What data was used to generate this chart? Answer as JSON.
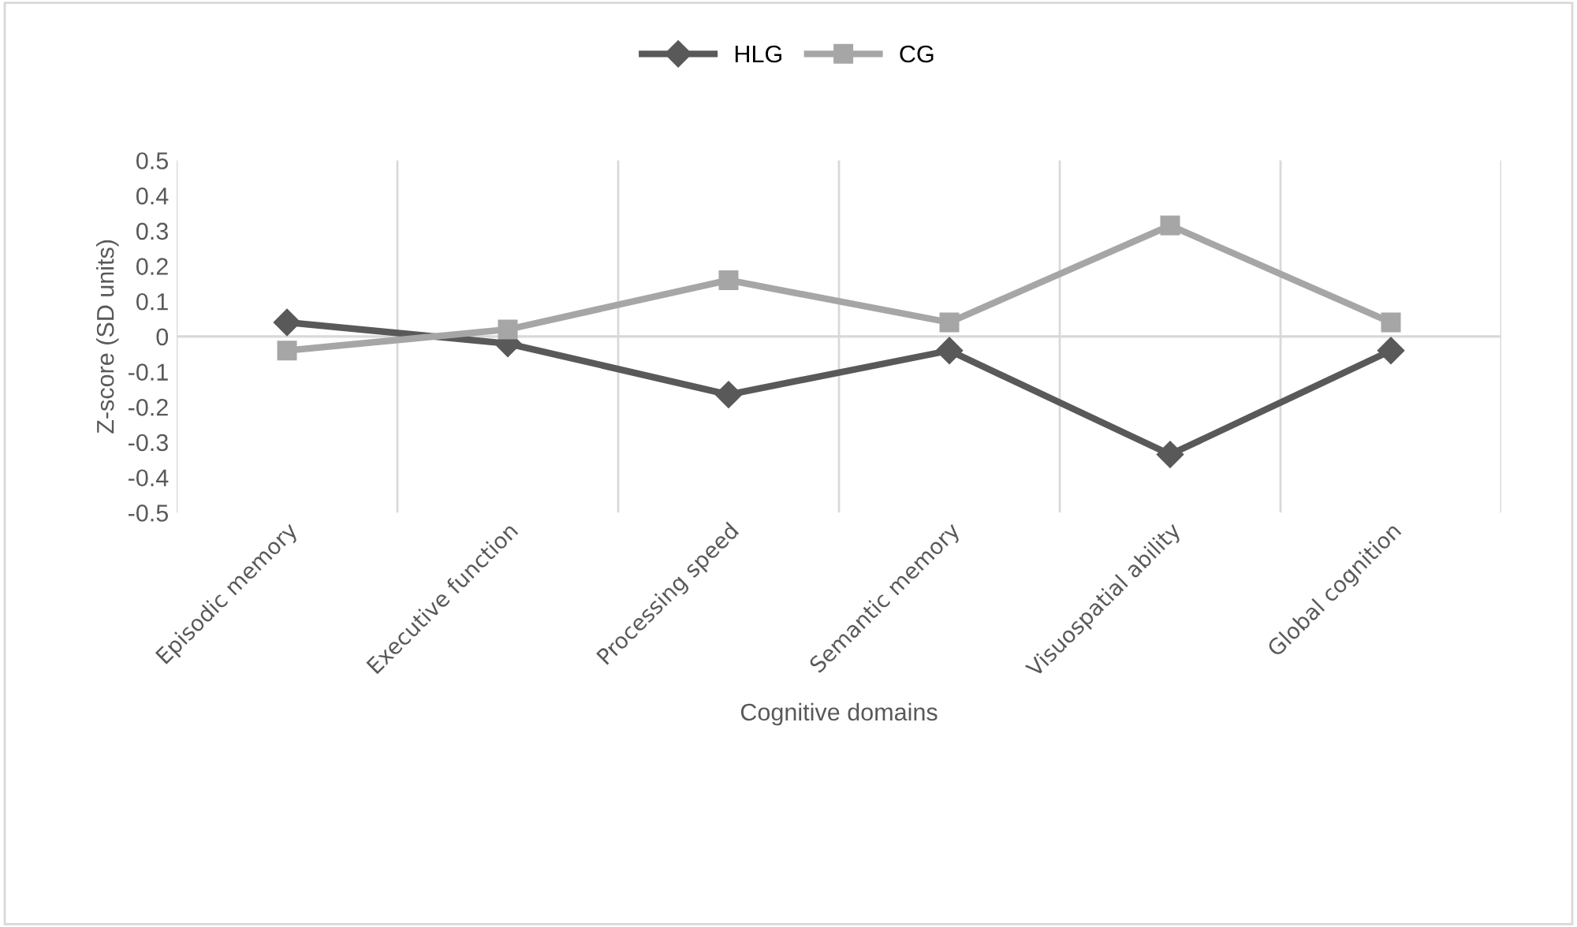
{
  "chart_data": {
    "type": "line",
    "xlabel": "Cognitive domains",
    "ylabel": "Z-score (SD units)",
    "categories": [
      "Episodic memory",
      "Executive function",
      "Processing speed",
      "Semantic memory",
      "Visuospatial ability",
      "Global cognition"
    ],
    "series": [
      {
        "name": "HLG",
        "color": "#595959",
        "marker": "diamond",
        "values": [
          0.04,
          -0.02,
          -0.165,
          -0.04,
          -0.335,
          -0.04
        ]
      },
      {
        "name": "CG",
        "color": "#a6a6a6",
        "marker": "square",
        "values": [
          -0.04,
          0.02,
          0.16,
          0.04,
          0.315,
          0.04
        ]
      }
    ],
    "ylim": [
      -0.5,
      0.5
    ],
    "yticks": [
      {
        "value": -0.5,
        "label": "-0.5"
      },
      {
        "value": -0.4,
        "label": "-0.4"
      },
      {
        "value": -0.3,
        "label": "-0.3"
      },
      {
        "value": -0.2,
        "label": "-0.2"
      },
      {
        "value": -0.1,
        "label": "-0.1"
      },
      0,
      0.1,
      0.2,
      0.3,
      0.4,
      0.5
    ],
    "grid": "x",
    "legend": "top",
    "line_style": "solid"
  }
}
